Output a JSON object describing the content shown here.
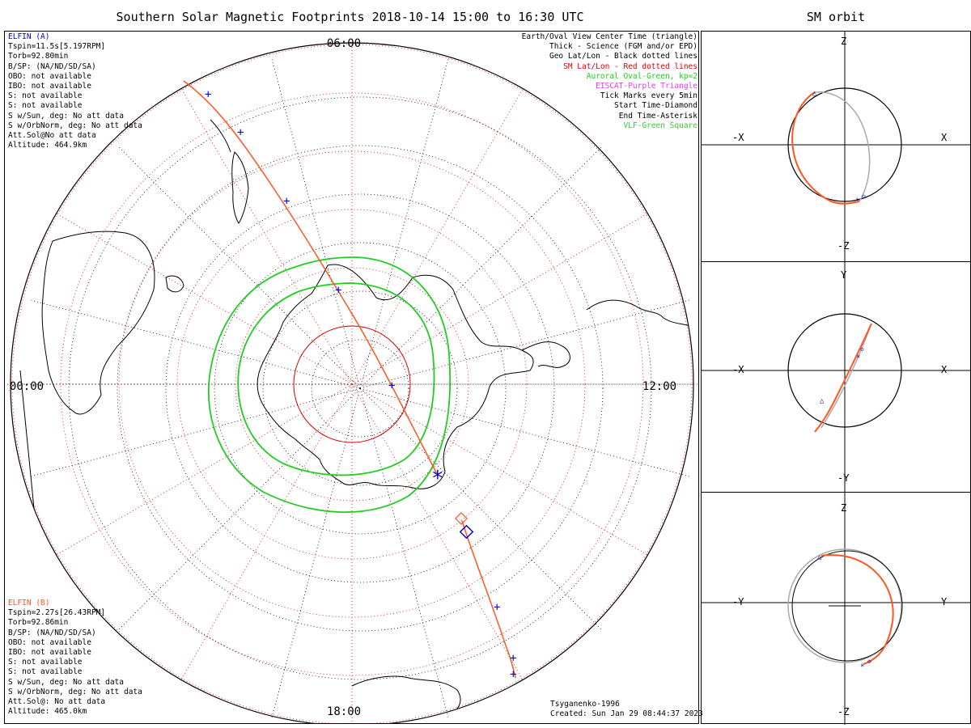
{
  "title": "Southern Solar Magnetic Footprints 2018-10-14 15:00 to 16:30 UTC",
  "orbit_title": "SM orbit",
  "colors": {
    "elfin_a": "#0000cc",
    "elfin_b": "#ff5522",
    "sm_grid": "#dd0000",
    "auroral_oval": "#22cc22",
    "eiscat": "#dd44dd",
    "vlf": "#33cc33",
    "coast": "#000000"
  },
  "map": {
    "mlt_labels": {
      "top": "06:00",
      "left": "00:00",
      "right": "12:00",
      "bottom": "18:00"
    }
  },
  "elfin_a": {
    "name": "ELFIN (A)",
    "lines": [
      "Tspin=11.5s[5.197RPM]",
      "Torb=92.80min",
      "B/SP: (NA/ND/SD/SA)",
      "OBO: not available",
      "IBO: not available",
      "S: not available",
      "S: not available",
      "S w/Sun, deg: No att data",
      "S w/OrbNorm, deg: No att data",
      "Att.Sol@No att data",
      "Altitude: 464.9km"
    ]
  },
  "elfin_b": {
    "name": "ELFIN (B)",
    "lines": [
      "Tspin=2.27s[26.43RPM]",
      "Torb=92.86min",
      "B/SP: (NA/ND/SD/SA)",
      "OBO: not available",
      "IBO: not available",
      "S: not available",
      "S: not available",
      "S w/Sun, deg: No att data",
      "S w/OrbNorm, deg: No att data",
      "Att.Sol@: No att data",
      "Altitude: 465.0km"
    ]
  },
  "legend": [
    {
      "text": "Earth/Oval View Center Time (triangle)",
      "color": "#000000"
    },
    {
      "text": "Thick - Science (FGM and/or EPD)",
      "color": "#000000"
    },
    {
      "text": "Geo Lat/Lon - Black dotted lines",
      "color": "#000000"
    },
    {
      "text": "SM Lat/Lon - Red dotted lines",
      "color": "#dd0000"
    },
    {
      "text": "Auroral Oval-Green, kp=2",
      "color": "#22cc22"
    },
    {
      "text": "EISCAT-Purple Triangle",
      "color": "#dd44dd"
    },
    {
      "text": "Tick Marks every 5min",
      "color": "#000000"
    },
    {
      "text": "Start Time-Diamond",
      "color": "#000000"
    },
    {
      "text": "End Time-Asterisk",
      "color": "#000000"
    },
    {
      "text": "VLF-Green Square",
      "color": "#33cc33"
    }
  ],
  "credit": {
    "model": "Tsyganenko-1996",
    "created": "Created: Sun Jan 29 08:44:37 2023"
  },
  "panels": [
    {
      "top": "Z",
      "bottom": "-Z",
      "left": "-X",
      "right": "X"
    },
    {
      "top": "Y",
      "bottom": "-Y",
      "left": "-X",
      "right": "X"
    },
    {
      "top": "Z",
      "bottom": "-Z",
      "left": "-Y",
      "right": "Y"
    }
  ]
}
